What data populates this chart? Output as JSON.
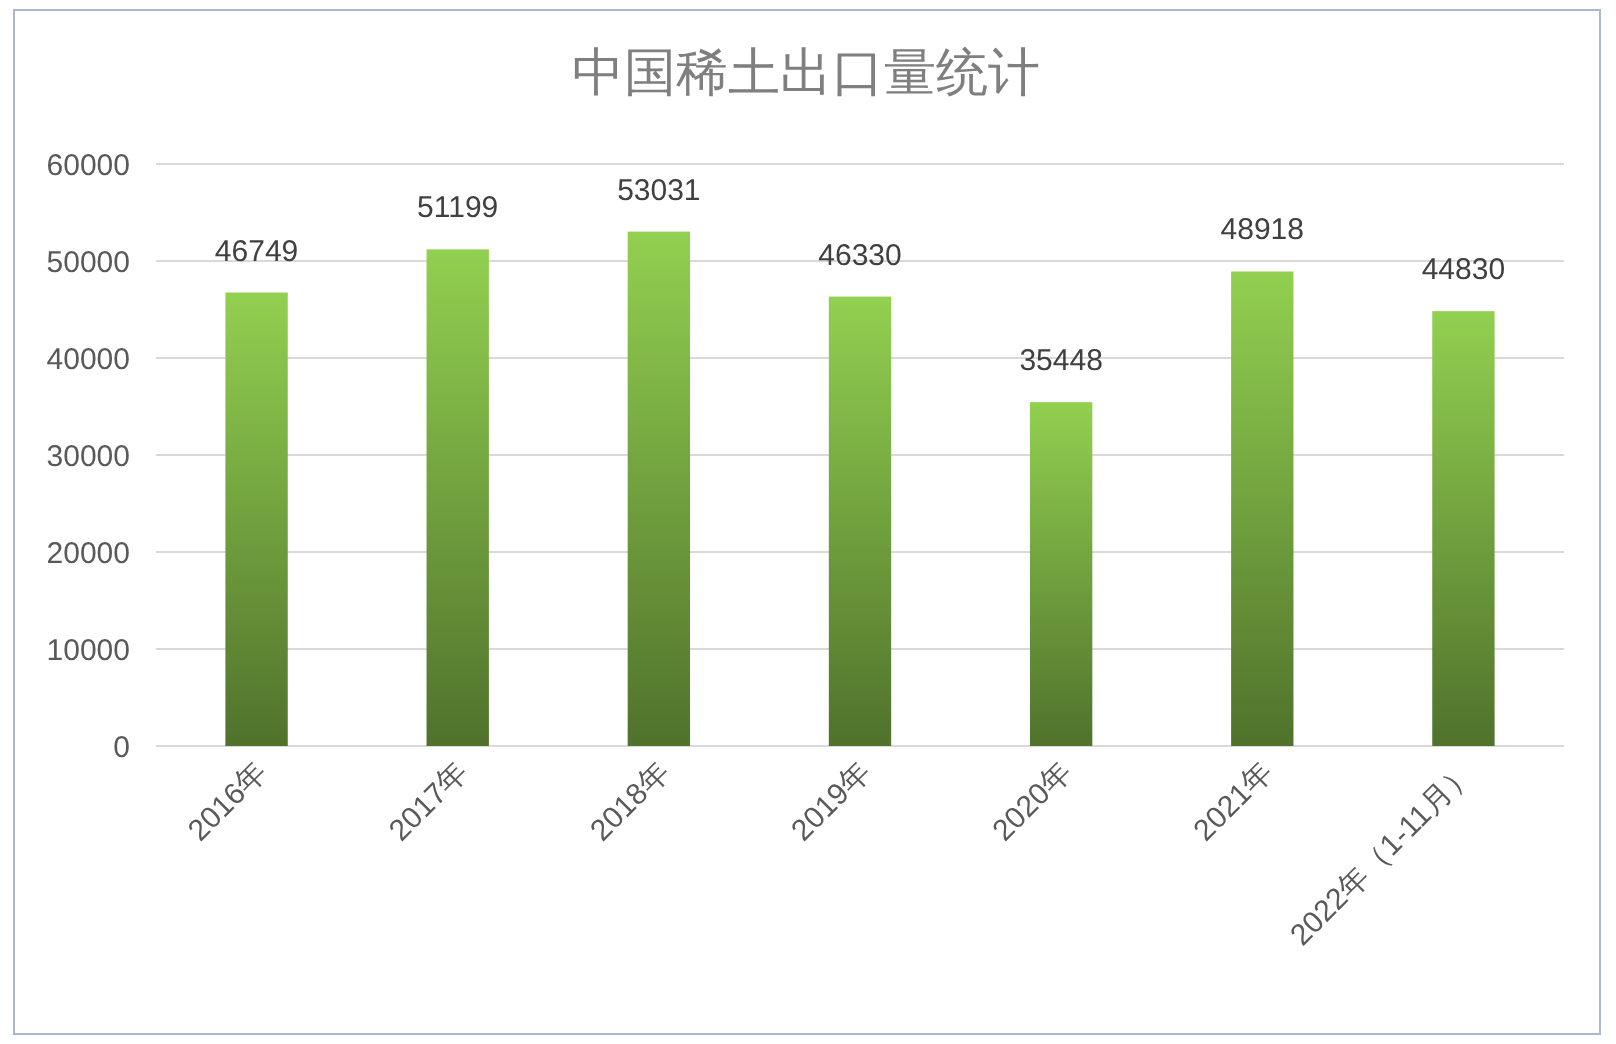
{
  "chart_data": {
    "type": "bar",
    "title": "中国稀土出口量统计",
    "categories": [
      "2016年",
      "2017年",
      "2018年",
      "2019年",
      "2020年",
      "2021年",
      "2022年（1-11月）"
    ],
    "values": [
      46749,
      51199,
      53031,
      46330,
      35448,
      48918,
      44830
    ],
    "color": "#92d050",
    "ylim": [
      0,
      60000
    ],
    "yticks": [
      0,
      10000,
      20000,
      30000,
      40000,
      50000,
      60000
    ],
    "grid": "y",
    "data_labels": true
  }
}
